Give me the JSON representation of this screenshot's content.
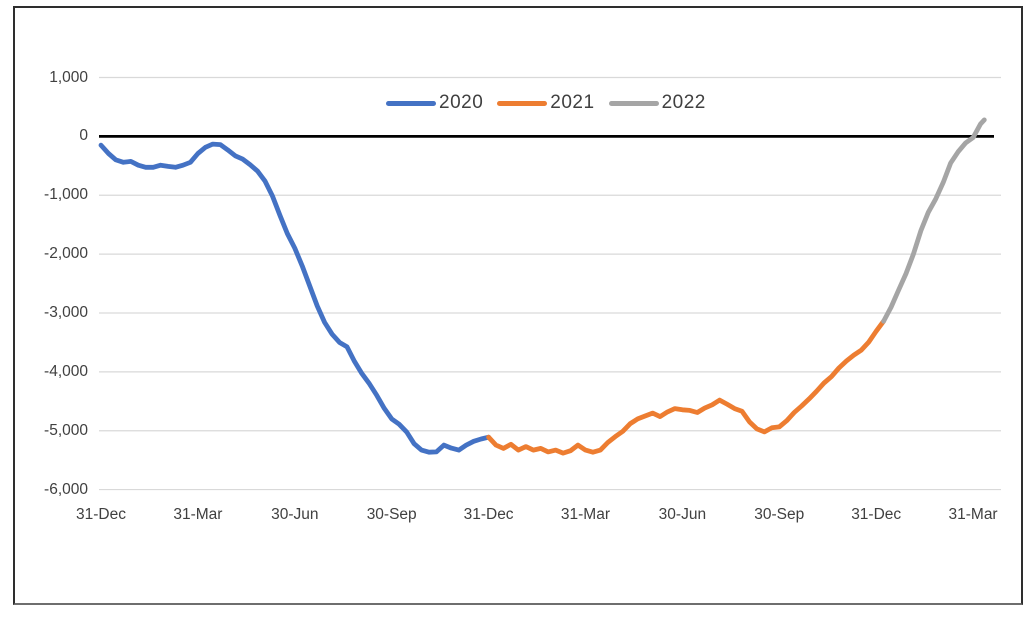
{
  "colors": {
    "background": "#ffffff",
    "frame_border": "#2e2e2e",
    "grid_line": "#d9d9d9",
    "zero_axis_line": "#000000",
    "axis_text": "#404040",
    "series_2020": "#4472c4",
    "series_2021": "#ed7d31",
    "series_2022": "#a5a5a5"
  },
  "chart_data": {
    "type": "line",
    "title": "",
    "xlabel": "",
    "ylabel": "",
    "grid": true,
    "legend_position": "top-center",
    "zero_line": true,
    "x_axis": {
      "unit": "weeks-from-first-tick",
      "tick_labels": [
        "31-Dec",
        "31-Mar",
        "30-Jun",
        "30-Sep",
        "31-Dec",
        "31-Mar",
        "30-Jun",
        "30-Sep",
        "31-Dec",
        "31-Mar"
      ],
      "tick_weeks": [
        0,
        13,
        26,
        39,
        52,
        65,
        78,
        91,
        104,
        117
      ]
    },
    "y_axis": {
      "tick_labels": [
        "1,000",
        "0",
        "-1,000",
        "-2,000",
        "-3,000",
        "-4,000",
        "-5,000",
        "-6,000"
      ],
      "tick_values": [
        1000,
        0,
        -1000,
        -2000,
        -3000,
        -4000,
        -5000,
        -6000
      ],
      "ylim": [
        -6000,
        1000
      ]
    },
    "series": [
      {
        "name": "2020",
        "color": "#4472c4",
        "points": [
          [
            0,
            -150
          ],
          [
            1,
            -290
          ],
          [
            2,
            -400
          ],
          [
            3,
            -440
          ],
          [
            4,
            -425
          ],
          [
            5,
            -490
          ],
          [
            6,
            -525
          ],
          [
            7,
            -525
          ],
          [
            8,
            -490
          ],
          [
            9,
            -510
          ],
          [
            10,
            -525
          ],
          [
            11,
            -490
          ],
          [
            12,
            -440
          ],
          [
            13,
            -290
          ],
          [
            14,
            -185
          ],
          [
            15,
            -130
          ],
          [
            16,
            -140
          ],
          [
            17,
            -230
          ],
          [
            18,
            -330
          ],
          [
            19,
            -385
          ],
          [
            20,
            -480
          ],
          [
            21,
            -590
          ],
          [
            22,
            -760
          ],
          [
            23,
            -1010
          ],
          [
            24,
            -1340
          ],
          [
            25,
            -1650
          ],
          [
            26,
            -1900
          ],
          [
            27,
            -2200
          ],
          [
            28,
            -2540
          ],
          [
            29,
            -2880
          ],
          [
            30,
            -3160
          ],
          [
            31,
            -3360
          ],
          [
            32,
            -3500
          ],
          [
            33,
            -3575
          ],
          [
            34,
            -3820
          ],
          [
            35,
            -4030
          ],
          [
            36,
            -4200
          ],
          [
            37,
            -4400
          ],
          [
            38,
            -4620
          ],
          [
            39,
            -4800
          ],
          [
            40,
            -4890
          ],
          [
            41,
            -5020
          ],
          [
            42,
            -5220
          ],
          [
            43,
            -5330
          ],
          [
            44,
            -5365
          ],
          [
            45,
            -5360
          ],
          [
            46,
            -5245
          ],
          [
            47,
            -5295
          ],
          [
            48,
            -5330
          ],
          [
            49,
            -5245
          ],
          [
            50,
            -5180
          ],
          [
            51,
            -5140
          ],
          [
            52,
            -5110
          ]
        ]
      },
      {
        "name": "2021",
        "color": "#ed7d31",
        "points": [
          [
            52,
            -5110
          ],
          [
            53,
            -5245
          ],
          [
            54,
            -5300
          ],
          [
            55,
            -5230
          ],
          [
            56,
            -5330
          ],
          [
            57,
            -5270
          ],
          [
            58,
            -5330
          ],
          [
            59,
            -5300
          ],
          [
            60,
            -5360
          ],
          [
            61,
            -5330
          ],
          [
            62,
            -5380
          ],
          [
            63,
            -5340
          ],
          [
            64,
            -5245
          ],
          [
            65,
            -5330
          ],
          [
            66,
            -5365
          ],
          [
            67,
            -5330
          ],
          [
            68,
            -5200
          ],
          [
            69,
            -5100
          ],
          [
            70,
            -5010
          ],
          [
            71,
            -4880
          ],
          [
            72,
            -4800
          ],
          [
            73,
            -4750
          ],
          [
            74,
            -4700
          ],
          [
            75,
            -4760
          ],
          [
            76,
            -4680
          ],
          [
            77,
            -4625
          ],
          [
            78,
            -4645
          ],
          [
            79,
            -4655
          ],
          [
            80,
            -4690
          ],
          [
            81,
            -4615
          ],
          [
            82,
            -4560
          ],
          [
            83,
            -4480
          ],
          [
            84,
            -4550
          ],
          [
            85,
            -4625
          ],
          [
            86,
            -4670
          ],
          [
            87,
            -4850
          ],
          [
            88,
            -4970
          ],
          [
            89,
            -5020
          ],
          [
            90,
            -4950
          ],
          [
            91,
            -4935
          ],
          [
            92,
            -4830
          ],
          [
            93,
            -4690
          ],
          [
            94,
            -4580
          ],
          [
            95,
            -4460
          ],
          [
            96,
            -4330
          ],
          [
            97,
            -4190
          ],
          [
            98,
            -4080
          ],
          [
            99,
            -3935
          ],
          [
            100,
            -3815
          ],
          [
            101,
            -3715
          ],
          [
            102,
            -3630
          ],
          [
            103,
            -3495
          ],
          [
            104,
            -3310
          ],
          [
            105,
            -3140
          ]
        ]
      },
      {
        "name": "2022",
        "color": "#a5a5a5",
        "points": [
          [
            105,
            -3140
          ],
          [
            106,
            -2900
          ],
          [
            107,
            -2615
          ],
          [
            108,
            -2330
          ],
          [
            109,
            -2000
          ],
          [
            110,
            -1600
          ],
          [
            111,
            -1290
          ],
          [
            112,
            -1060
          ],
          [
            113,
            -780
          ],
          [
            114,
            -450
          ],
          [
            115,
            -260
          ],
          [
            116,
            -110
          ],
          [
            117,
            -20
          ],
          [
            118,
            210
          ],
          [
            118.5,
            280
          ]
        ]
      }
    ]
  }
}
